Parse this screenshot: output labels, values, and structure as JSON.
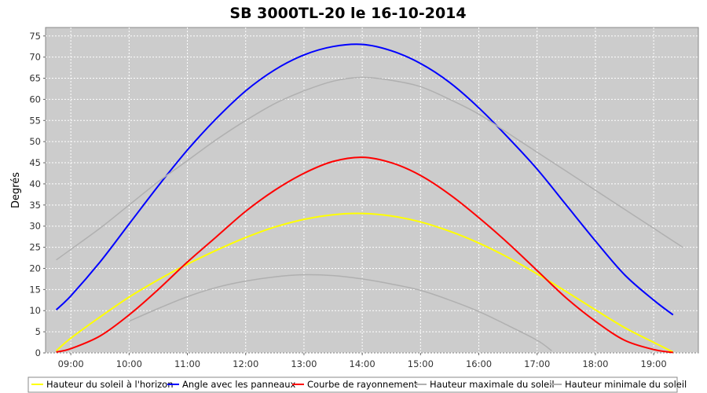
{
  "chart_data": {
    "type": "line",
    "title": "SB 3000TL-20 le 16-10-2014",
    "xlabel": "",
    "ylabel": "Degrés",
    "x_ticks": [
      "09:00",
      "10:00",
      "11:00",
      "12:00",
      "13:00",
      "14:00",
      "15:00",
      "16:00",
      "17:00",
      "18:00",
      "19:00"
    ],
    "xlim": [
      "08:34",
      "19:46"
    ],
    "ylim": [
      0,
      77
    ],
    "y_ticks": [
      0,
      5,
      10,
      15,
      20,
      25,
      30,
      35,
      40,
      45,
      50,
      55,
      60,
      65,
      70,
      75
    ],
    "grid": true,
    "legend_position": "bottom",
    "plot_background": "#cccccc",
    "series": [
      {
        "name": "Hauteur du soleil à l'horizon",
        "color": "#ffff00",
        "points": [
          [
            "08:45",
            0.5
          ],
          [
            "09:00",
            3.5
          ],
          [
            "09:30",
            8.5
          ],
          [
            "10:00",
            13.2
          ],
          [
            "10:30",
            17.3
          ],
          [
            "11:00",
            21.0
          ],
          [
            "11:30",
            24.3
          ],
          [
            "12:00",
            27.3
          ],
          [
            "12:30",
            29.8
          ],
          [
            "13:00",
            31.6
          ],
          [
            "13:30",
            32.7
          ],
          [
            "14:00",
            33.0
          ],
          [
            "14:30",
            32.4
          ],
          [
            "15:00",
            31.0
          ],
          [
            "15:30",
            28.8
          ],
          [
            "16:00",
            26.0
          ],
          [
            "16:30",
            22.6
          ],
          [
            "17:00",
            18.7
          ],
          [
            "17:30",
            14.5
          ],
          [
            "18:00",
            10.2
          ],
          [
            "18:30",
            6.0
          ],
          [
            "19:00",
            2.5
          ],
          [
            "19:20",
            0.2
          ]
        ]
      },
      {
        "name": "Angle avec les panneaux",
        "color": "#0000ff",
        "points": [
          [
            "08:45",
            10.2
          ],
          [
            "09:00",
            13.5
          ],
          [
            "09:30",
            21.5
          ],
          [
            "10:00",
            30.5
          ],
          [
            "10:30",
            39.5
          ],
          [
            "11:00",
            48.0
          ],
          [
            "11:30",
            55.5
          ],
          [
            "12:00",
            62.0
          ],
          [
            "12:30",
            67.0
          ],
          [
            "13:00",
            70.5
          ],
          [
            "13:30",
            72.5
          ],
          [
            "14:00",
            73.0
          ],
          [
            "14:30",
            71.5
          ],
          [
            "15:00",
            68.5
          ],
          [
            "15:30",
            64.0
          ],
          [
            "16:00",
            58.0
          ],
          [
            "16:30",
            51.0
          ],
          [
            "17:00",
            43.5
          ],
          [
            "17:30",
            35.0
          ],
          [
            "18:00",
            26.5
          ],
          [
            "18:30",
            18.5
          ],
          [
            "19:00",
            12.5
          ],
          [
            "19:20",
            9.0
          ]
        ]
      },
      {
        "name": "Courbe de rayonnement",
        "color": "#ff0000",
        "points": [
          [
            "08:45",
            0.2
          ],
          [
            "09:00",
            1.0
          ],
          [
            "09:30",
            4.0
          ],
          [
            "10:00",
            9.0
          ],
          [
            "10:30",
            15.0
          ],
          [
            "11:00",
            21.5
          ],
          [
            "11:30",
            27.5
          ],
          [
            "12:00",
            33.5
          ],
          [
            "12:30",
            38.5
          ],
          [
            "13:00",
            42.5
          ],
          [
            "13:30",
            45.3
          ],
          [
            "14:00",
            46.3
          ],
          [
            "14:30",
            45.0
          ],
          [
            "15:00",
            42.0
          ],
          [
            "15:30",
            37.5
          ],
          [
            "16:00",
            32.0
          ],
          [
            "16:30",
            26.0
          ],
          [
            "17:00",
            19.5
          ],
          [
            "17:30",
            13.0
          ],
          [
            "18:00",
            7.5
          ],
          [
            "18:30",
            3.0
          ],
          [
            "19:00",
            0.8
          ],
          [
            "19:20",
            0.1
          ]
        ]
      },
      {
        "name": "Hauteur maximale du soleil",
        "color": "#b0b0b0",
        "points": [
          [
            "08:45",
            22.0
          ],
          [
            "09:00",
            24.5
          ],
          [
            "09:30",
            29.5
          ],
          [
            "10:00",
            35.0
          ],
          [
            "10:30",
            40.5
          ],
          [
            "11:00",
            45.5
          ],
          [
            "11:30",
            50.5
          ],
          [
            "12:00",
            55.0
          ],
          [
            "12:30",
            59.0
          ],
          [
            "13:00",
            62.0
          ],
          [
            "13:30",
            64.3
          ],
          [
            "14:00",
            65.2
          ],
          [
            "14:30",
            64.5
          ],
          [
            "15:00",
            63.0
          ],
          [
            "15:30",
            60.0
          ],
          [
            "16:00",
            56.5
          ],
          [
            "16:30",
            52.0
          ],
          [
            "17:00",
            47.5
          ],
          [
            "17:30",
            43.0
          ],
          [
            "18:00",
            38.5
          ],
          [
            "18:30",
            34.0
          ],
          [
            "19:00",
            29.5
          ],
          [
            "19:30",
            25.0
          ]
        ]
      },
      {
        "name": "Hauteur minimale du soleil",
        "color": "#b0b0b0",
        "points": [
          [
            "10:00",
            7.5
          ],
          [
            "10:30",
            10.5
          ],
          [
            "11:00",
            13.3
          ],
          [
            "11:30",
            15.5
          ],
          [
            "12:00",
            17.0
          ],
          [
            "12:30",
            18.0
          ],
          [
            "13:00",
            18.5
          ],
          [
            "13:30",
            18.3
          ],
          [
            "14:00",
            17.5
          ],
          [
            "14:30",
            16.3
          ],
          [
            "15:00",
            14.8
          ],
          [
            "15:30",
            12.5
          ],
          [
            "16:00",
            9.8
          ],
          [
            "16:30",
            6.5
          ],
          [
            "17:00",
            3.0
          ],
          [
            "17:15",
            0.5
          ]
        ]
      }
    ]
  }
}
